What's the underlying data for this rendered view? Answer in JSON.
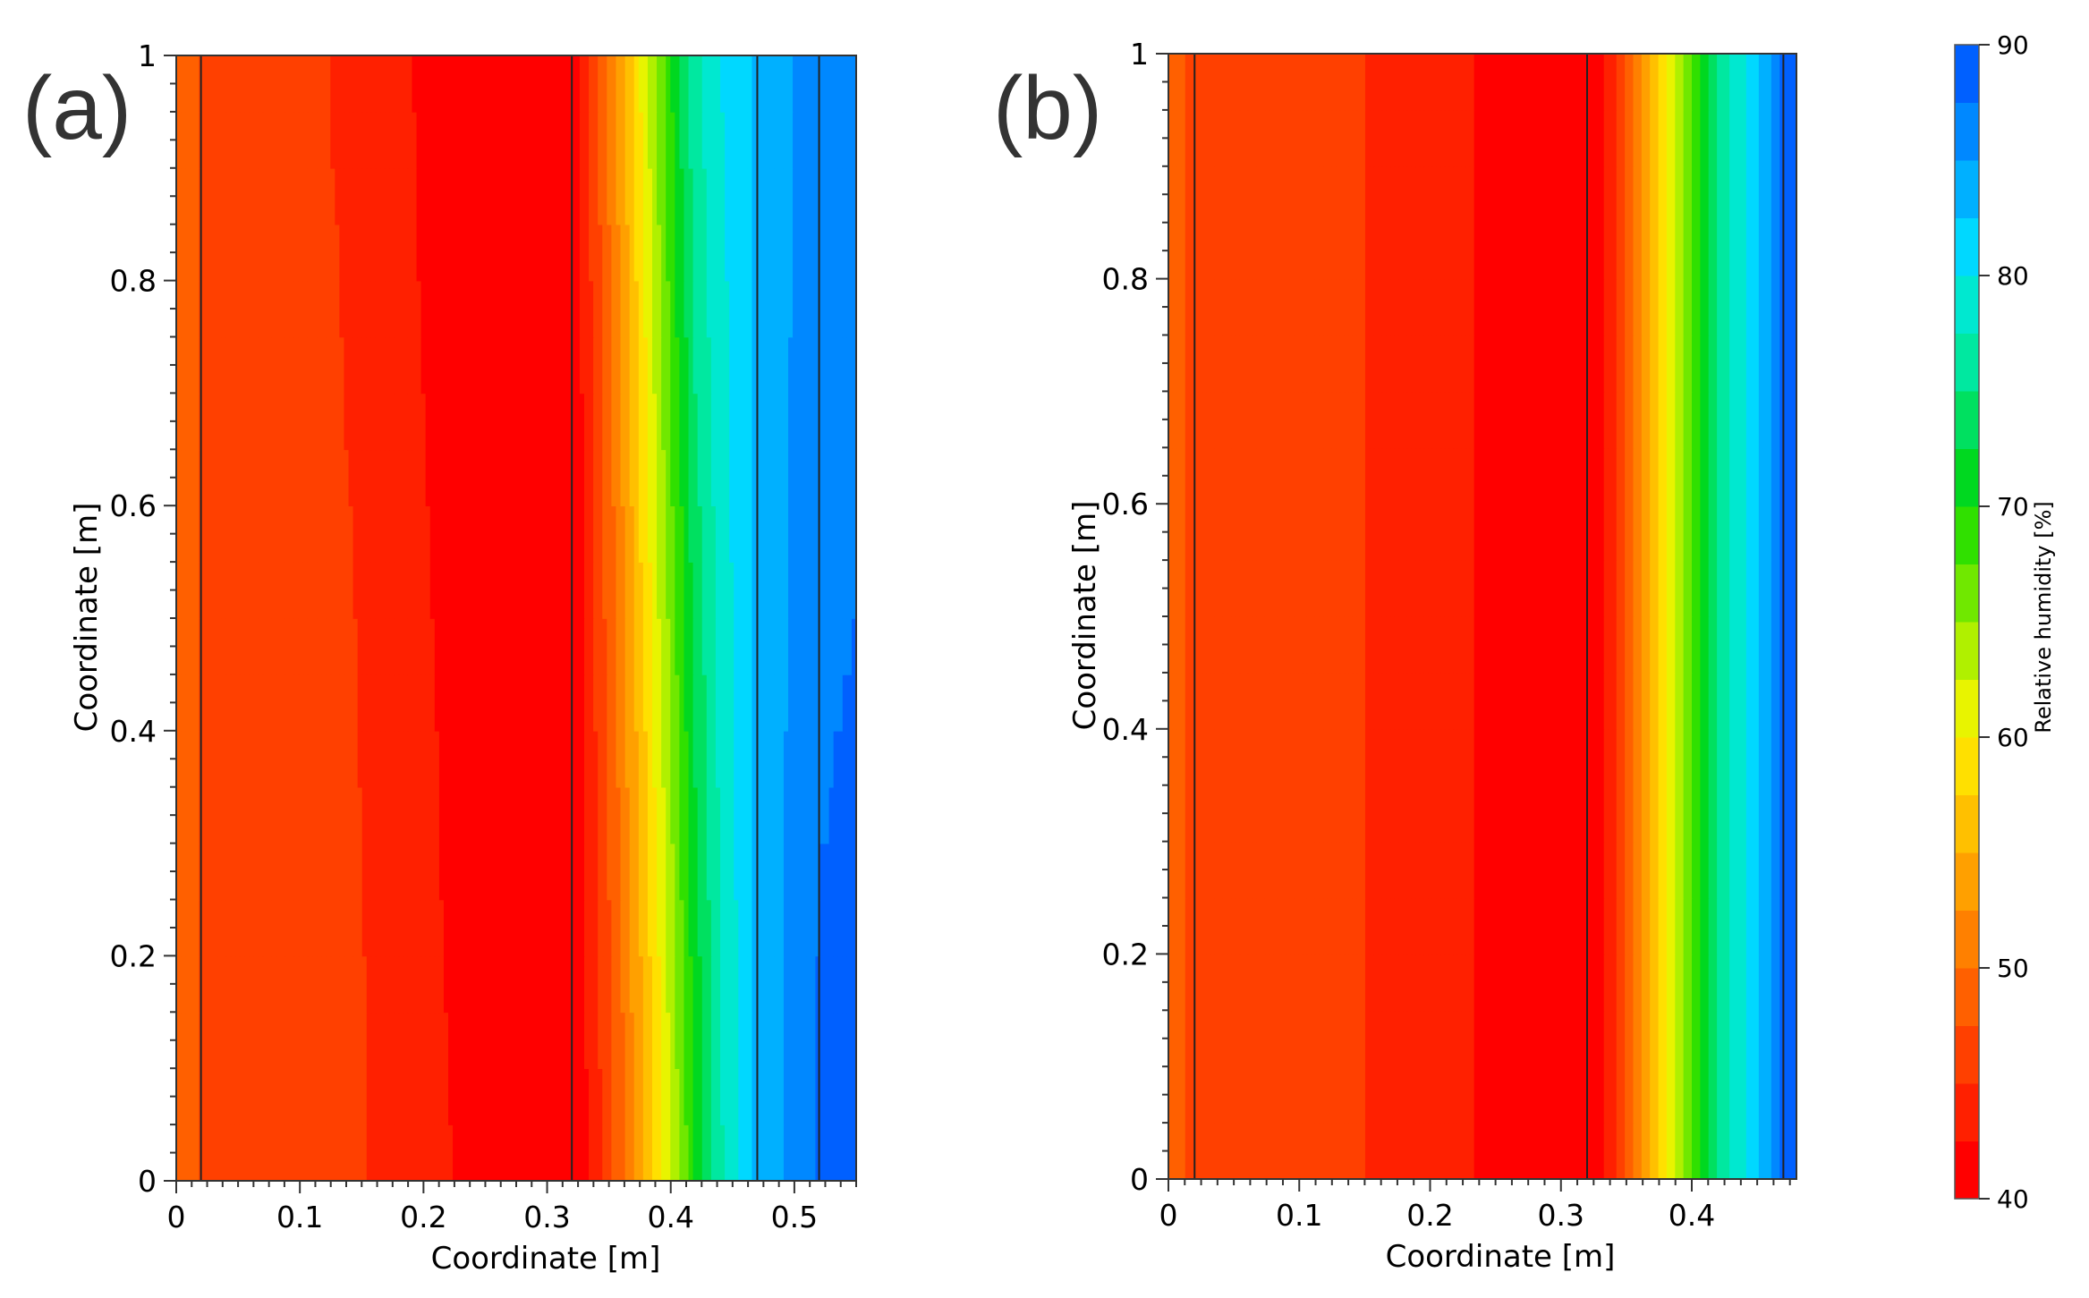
{
  "chart_data": [
    {
      "type": "heatmap",
      "panel_label": "(a)",
      "xlabel": "Coordinate [m]",
      "ylabel": "Coordinate [m]",
      "xlim": [
        0,
        0.55
      ],
      "ylim": [
        0,
        1
      ],
      "xticks": [
        0,
        0.1,
        0.2,
        0.3,
        0.4,
        0.5
      ],
      "xtick_labels": [
        "0",
        "0.1",
        "0.2",
        "0.3",
        "0.4",
        "0.5"
      ],
      "yticks": [
        0,
        0.2,
        0.4,
        0.6,
        0.8,
        1
      ],
      "ytick_labels": [
        "0",
        "0.2",
        "0.4",
        "0.6",
        "0.8",
        "1"
      ],
      "layer_boundaries_m": [
        0.02,
        0.32,
        0.47,
        0.52
      ],
      "field": {
        "description": "relative humidity [%] vs x-coordinate, sampled at bottom (y=0) and top (y=1)",
        "x": [
          0.0,
          0.02,
          0.1,
          0.145,
          0.19,
          0.24,
          0.32,
          0.34,
          0.36,
          0.38,
          0.4,
          0.42,
          0.44,
          0.46,
          0.47,
          0.5,
          0.52,
          0.55
        ],
        "rh_bottom": [
          50,
          47.5,
          46.5,
          45.5,
          43.5,
          42,
          40,
          44,
          49,
          55,
          62,
          70,
          77,
          81,
          83,
          86,
          88,
          89
        ],
        "rh_top": [
          50,
          47.5,
          45.5,
          44.5,
          42.5,
          41,
          40,
          47,
          54,
          62,
          70,
          77,
          80,
          82,
          83,
          85,
          86,
          86
        ]
      }
    },
    {
      "type": "heatmap",
      "panel_label": "(b)",
      "xlabel": "Coordinate [m]",
      "ylabel": "Coordinate [m]",
      "xlim": [
        0,
        0.48
      ],
      "ylim": [
        0,
        1
      ],
      "xticks": [
        0,
        0.1,
        0.2,
        0.3,
        0.4
      ],
      "xtick_labels": [
        "0",
        "0.1",
        "0.2",
        "0.3",
        "0.4"
      ],
      "yticks": [
        0,
        0.2,
        0.4,
        0.6,
        0.8,
        1
      ],
      "ytick_labels": [
        "0",
        "0.2",
        "0.4",
        "0.6",
        "0.8",
        "1"
      ],
      "layer_boundaries_m": [
        0.02,
        0.32,
        0.47
      ],
      "field": {
        "description": "relative humidity [%] vs x-coordinate, uniform in y",
        "x": [
          0.0,
          0.02,
          0.15,
          0.25,
          0.32,
          0.34,
          0.36,
          0.38,
          0.4,
          0.42,
          0.44,
          0.46,
          0.47,
          0.48
        ],
        "rh_bottom": [
          50,
          46.5,
          45,
          42,
          40,
          44,
          52,
          60,
          68,
          75,
          80,
          85,
          88,
          88
        ],
        "rh_top": [
          50,
          46.5,
          45,
          42,
          40,
          44,
          52,
          60,
          68,
          75,
          80,
          85,
          88,
          88
        ]
      }
    }
  ],
  "colorbar": {
    "label": "Relative humidity [%]",
    "min": 40,
    "max": 90,
    "step": 2.5,
    "ticks": [
      40,
      50,
      60,
      70,
      80,
      90
    ],
    "tick_labels": [
      "40",
      "50",
      "60",
      "70",
      "80",
      "90"
    ],
    "colors": [
      "#ff0000",
      "#ff2000",
      "#ff4000",
      "#ff6000",
      "#ff8000",
      "#ffa000",
      "#ffc000",
      "#ffe000",
      "#e8f400",
      "#b0f000",
      "#70e800",
      "#30e000",
      "#00d820",
      "#00e060",
      "#00e8a0",
      "#00e8d0",
      "#00d8ff",
      "#00b0ff",
      "#0088ff",
      "#0060ff",
      "#0040e0"
    ]
  }
}
